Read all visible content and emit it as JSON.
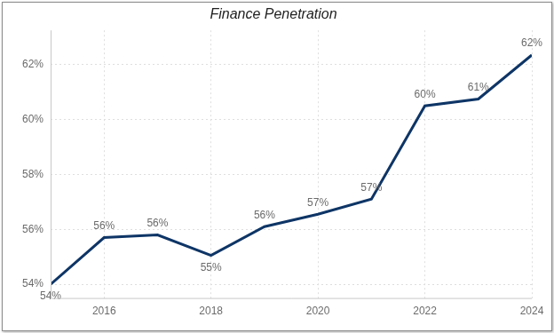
{
  "chart_data": {
    "type": "line",
    "title": "Finance Penetration",
    "x": [
      2015,
      2016,
      2017,
      2018,
      2019,
      2020,
      2021,
      2022,
      2023,
      2024
    ],
    "values": [
      54.0,
      55.7,
      55.8,
      55.05,
      56.1,
      56.55,
      57.1,
      60.5,
      60.75,
      62.35
    ],
    "value_labels": [
      "54%",
      "56%",
      "56%",
      "55%",
      "56%",
      "57%",
      "57%",
      "60%",
      "61%",
      "62%"
    ],
    "color": "#0e3566",
    "xlim": [
      2015,
      2024
    ],
    "xticks": [
      2016,
      2018,
      2020,
      2022,
      2024
    ],
    "ylim": [
      53.5,
      63.25
    ],
    "yticks": [
      {
        "value": 54,
        "label": "54%"
      },
      {
        "value": 56,
        "label": "56%"
      },
      {
        "value": 58,
        "label": "58%"
      },
      {
        "value": 60,
        "label": "60%"
      },
      {
        "value": 62,
        "label": "62%"
      }
    ],
    "grid": true,
    "data_labels": true
  }
}
